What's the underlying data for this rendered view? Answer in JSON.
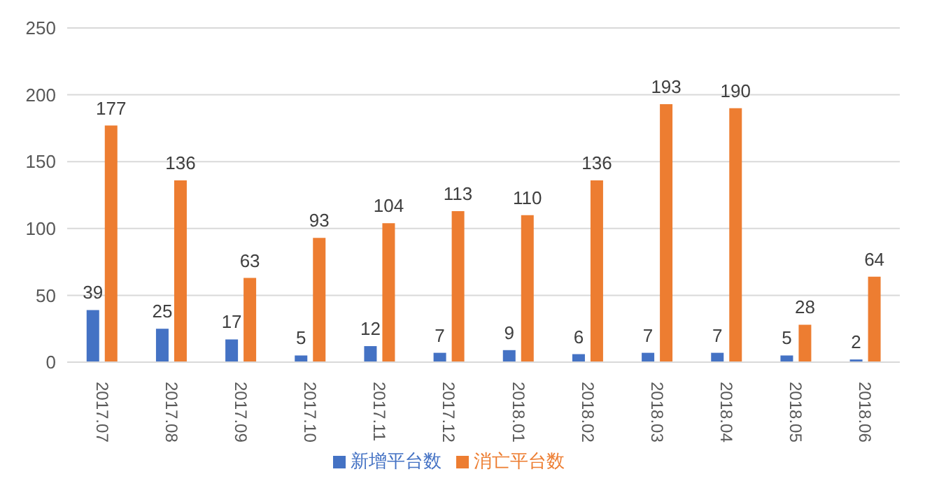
{
  "chart_data": {
    "type": "bar",
    "categories": [
      "2017.07",
      "2017.08",
      "2017.09",
      "2017.10",
      "2017.11",
      "2017.12",
      "2018.01",
      "2018.02",
      "2018.03",
      "2018.04",
      "2018.05",
      "2018.06"
    ],
    "series": [
      {
        "name": "新增平台数",
        "color": "#4472c4",
        "values": [
          39,
          25,
          17,
          5,
          12,
          7,
          9,
          6,
          7,
          7,
          5,
          2
        ]
      },
      {
        "name": "消亡平台数",
        "color": "#ed7d31",
        "values": [
          177,
          136,
          63,
          93,
          104,
          113,
          110,
          136,
          193,
          190,
          28,
          64
        ]
      }
    ],
    "ylim": [
      0,
      250
    ],
    "yticks": [
      0,
      50,
      100,
      150,
      200,
      250
    ],
    "grid": "y",
    "legend": "bottom",
    "data_labels": true
  }
}
